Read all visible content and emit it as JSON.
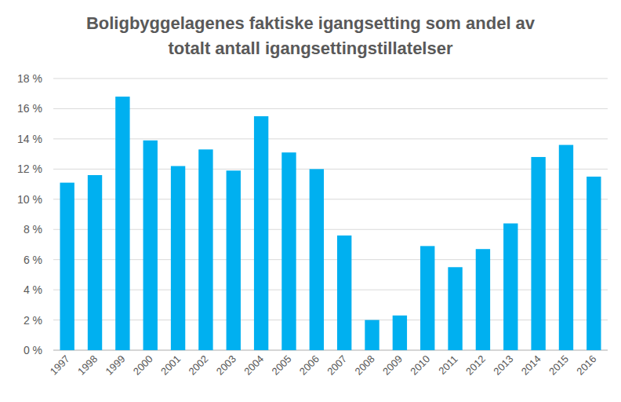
{
  "chart_data": {
    "type": "bar",
    "title": "Boligbyggelagenes faktiske igangsetting som andel av totalt antall igangsettingstillatelser",
    "categories": [
      "1997",
      "1998",
      "1999",
      "2000",
      "2001",
      "2002",
      "2003",
      "2004",
      "2005",
      "2006",
      "2007",
      "2008",
      "2009",
      "2010",
      "2011",
      "2012",
      "2013",
      "2014",
      "2015",
      "2016"
    ],
    "values": [
      11.1,
      11.6,
      16.8,
      13.9,
      12.2,
      13.3,
      11.9,
      15.5,
      13.1,
      12.0,
      7.6,
      2.0,
      2.3,
      6.9,
      5.5,
      6.7,
      8.4,
      12.8,
      13.6,
      11.5
    ],
    "color": "#00b0f0",
    "ylim": [
      0,
      18
    ],
    "yticks": [
      {
        "value": 0,
        "label": "0 %"
      },
      {
        "value": 2,
        "label": "2 %"
      },
      {
        "value": 4,
        "label": "4 %"
      },
      {
        "value": 6,
        "label": "6 %"
      },
      {
        "value": 8,
        "label": "8 %"
      },
      {
        "value": 10,
        "label": "10 %"
      },
      {
        "value": 12,
        "label": "12 %"
      },
      {
        "value": 14,
        "label": "14 %"
      },
      {
        "value": 16,
        "label": "16 %"
      },
      {
        "value": 18,
        "label": "18 %"
      }
    ],
    "grid": true
  }
}
